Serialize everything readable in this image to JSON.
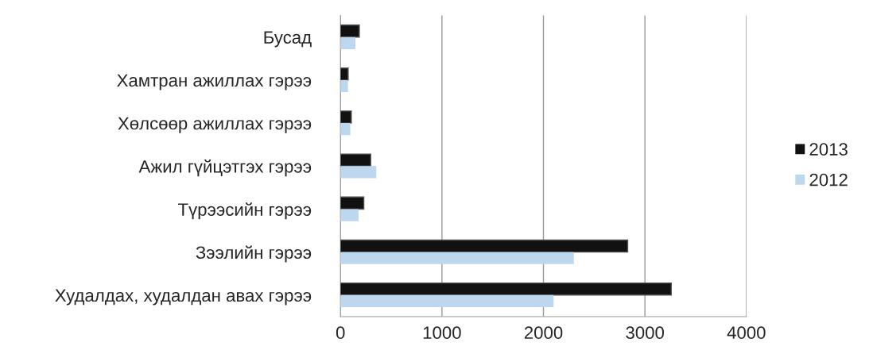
{
  "chart_data": {
    "type": "bar",
    "orientation": "horizontal",
    "categories": [
      "Бусад",
      "Хамтран ажиллах гэрээ",
      "Хөлсөөр ажиллах гэрээ",
      "Ажил гүйцэтгэх гэрээ",
      "Түрээсийн гэрээ",
      "Зээлийн гэрээ",
      "Худалдах, худалдан авах гэрээ"
    ],
    "series": [
      {
        "name": "2013",
        "color": "#111111",
        "values": [
          186,
          76,
          107,
          298,
          230,
          2830,
          3260
        ]
      },
      {
        "name": "2012",
        "color": "#bdd7ee",
        "values": [
          147,
          74,
          97,
          353,
          178,
          2300,
          2100
        ]
      }
    ],
    "xlim": [
      0,
      4000
    ],
    "xticks": [
      0,
      1000,
      2000,
      3000,
      4000
    ],
    "grid": "x",
    "legend": "right"
  }
}
